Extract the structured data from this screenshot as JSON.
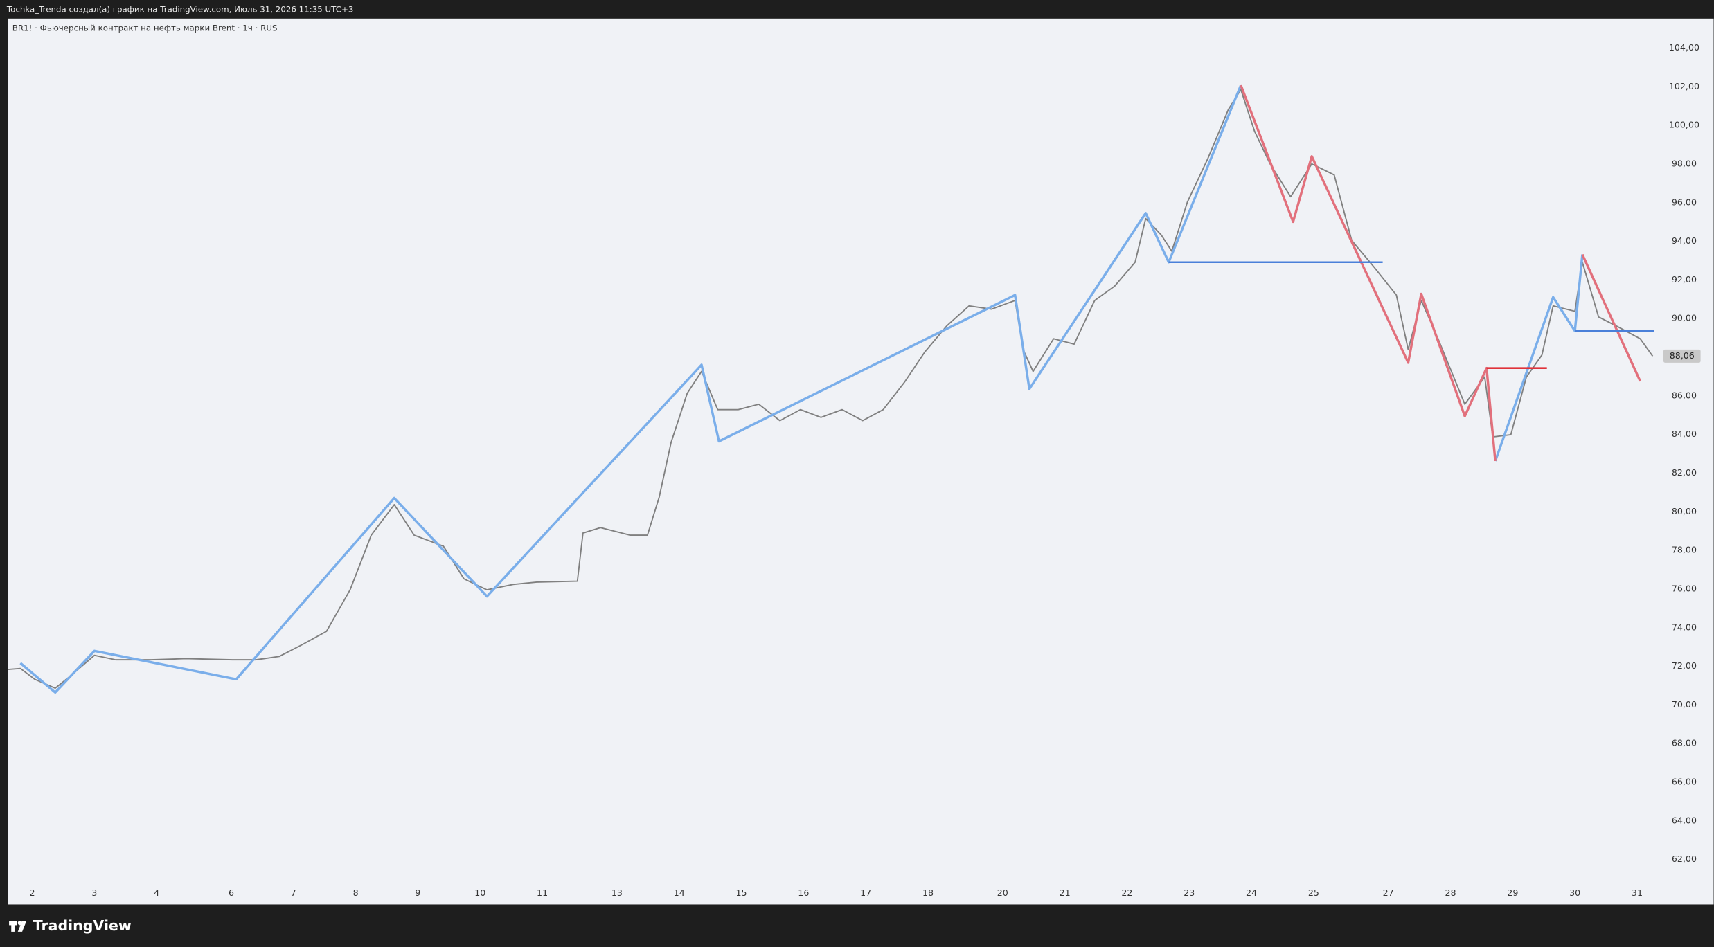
{
  "top_bar": {
    "text": "Tochka_Trenda создал(а) график на TradingView.com, Июль 31, 2026 11:35 UTC+3"
  },
  "brand": {
    "text": "TradingView"
  },
  "chart_data": {
    "type": "line",
    "title": "BR1! · Фьючерсный контракт на нефть марки Brent · 1ч · RUS",
    "xlim": [
      1.61,
      31.3
    ],
    "xticks": [
      2,
      3,
      4,
      6,
      7,
      8,
      9,
      10,
      11,
      13,
      14,
      15,
      16,
      17,
      18,
      20,
      21,
      22,
      23,
      24,
      25,
      27,
      28,
      29,
      30,
      31
    ],
    "ylim": [
      60.81,
      105.53
    ],
    "yticks": [
      {
        "value": 62,
        "label": "62,00"
      },
      {
        "value": 64,
        "label": "64,00"
      },
      {
        "value": 66,
        "label": "66,00"
      },
      {
        "value": 68,
        "label": "68,00"
      },
      {
        "value": 70,
        "label": "70,00"
      },
      {
        "value": 72,
        "label": "72,00"
      },
      {
        "value": 74,
        "label": "74,00"
      },
      {
        "value": 76,
        "label": "76,00"
      },
      {
        "value": 78,
        "label": "78,00"
      },
      {
        "value": 80,
        "label": "80,00"
      },
      {
        "value": 82,
        "label": "82,00"
      },
      {
        "value": 84,
        "label": "84,00"
      },
      {
        "value": 86,
        "label": "86,00"
      },
      {
        "value": 88,
        "label": "88,00"
      },
      {
        "value": 90,
        "label": "90,00"
      },
      {
        "value": 92,
        "label": "92,00"
      },
      {
        "value": 94,
        "label": "94,00"
      },
      {
        "value": 96,
        "label": "96,00"
      },
      {
        "value": 98,
        "label": "98,00"
      },
      {
        "value": 100,
        "label": "100,00"
      },
      {
        "value": 102,
        "label": "102,00"
      },
      {
        "value": 104,
        "label": "104,00"
      }
    ],
    "grid": false,
    "last_price": {
      "value": 88.06,
      "label": "88,06"
    },
    "series": [
      {
        "color": "#808080",
        "width": 1.2,
        "x": [
          1.61,
          1.81,
          2.04,
          2.37,
          2.59,
          3,
          3.34,
          3.91,
          4.78,
          6.02,
          6.4,
          6.77,
          7.15,
          7.53,
          7.91,
          8.25,
          8.62,
          8.94,
          9.41,
          9.74,
          10.11,
          10.53,
          10.91,
          11.94,
          12.09,
          12.56,
          13.21,
          13.49,
          13.68,
          13.87,
          14.13,
          14.36,
          14.62,
          14.95,
          15.28,
          15.62,
          15.95,
          16.28,
          16.62,
          16.95,
          17.28,
          17.62,
          17.95,
          18.51,
          19.1,
          19.7,
          20.2,
          20.33,
          20.49,
          20.82,
          21.15,
          21.48,
          21.8,
          22.13,
          22.3,
          22.55,
          22.72,
          22.97,
          23.3,
          23.63,
          23.83,
          24.05,
          24.3,
          24.63,
          24.97,
          25.55,
          26.02,
          26.63,
          27.13,
          27.32,
          27.53,
          27.8,
          28.23,
          28.55,
          28.68,
          28.97,
          29.22,
          29.47,
          29.65,
          30,
          30.12,
          30.38,
          30.72,
          31.05,
          31.25
        ],
        "values": [
          71.84,
          71.89,
          71.33,
          70.87,
          71.44,
          72.57,
          72.34,
          72.34,
          72.4,
          72.34,
          72.34,
          72.51,
          73.14,
          73.81,
          75.96,
          78.79,
          80.37,
          78.79,
          78.22,
          76.53,
          75.96,
          76.24,
          76.36,
          76.41,
          78.9,
          79.18,
          78.79,
          78.79,
          80.77,
          83.59,
          86.14,
          87.27,
          85.29,
          85.29,
          85.57,
          84.72,
          85.29,
          84.89,
          85.29,
          84.72,
          85.29,
          86.7,
          88.28,
          89.64,
          90.66,
          90.49,
          90.94,
          88.4,
          87.27,
          88.96,
          88.68,
          90.94,
          91.68,
          92.92,
          95.18,
          94.33,
          93.49,
          96.03,
          98.29,
          100.83,
          101.85,
          99.7,
          98.01,
          96.31,
          98.01,
          97.44,
          94.05,
          92.64,
          91.22,
          88.4,
          90.94,
          88.96,
          85.57,
          86.98,
          83.88,
          83.99,
          86.98,
          88.12,
          90.66,
          90.38,
          92.92,
          90.09,
          89.53,
          88.96,
          88.06
        ]
      },
      {
        "color": "#7aaeea",
        "width": 2.2,
        "x": [
          1.81,
          2.37,
          3,
          6.08,
          8.62,
          10.11,
          14.36,
          14.64,
          20.2,
          20.43,
          22.3,
          22.67,
          23.83,
          null,
          28.72,
          29.65,
          30,
          30.12
        ],
        "values": [
          72.17,
          70.65,
          72.8,
          71.33,
          80.71,
          75.62,
          87.61,
          83.65,
          91.22,
          86.36,
          95.46,
          92.92,
          102.08,
          null,
          82.63,
          91.11,
          89.36,
          93.32
        ]
      },
      {
        "color": "#e2707c",
        "width": 2.2,
        "x": [
          23.83,
          24.67,
          24.97,
          27.32,
          27.53,
          28.23,
          28.58,
          28.72,
          null,
          30.12,
          31.05
        ],
        "values": [
          102.08,
          95.01,
          98.4,
          87.72,
          91.28,
          84.95,
          87.44,
          82.63,
          null,
          93.32,
          86.76
        ]
      }
    ],
    "levels": [
      {
        "color": "#4a80d9",
        "value": 92.92,
        "x": [
          22.67,
          26.85
        ]
      },
      {
        "color": "#e0323a",
        "value": 87.44,
        "x": [
          28.58,
          29.55
        ]
      },
      {
        "color": "#4a80d9",
        "value": 89.36,
        "x": [
          30,
          31.27
        ]
      }
    ]
  }
}
